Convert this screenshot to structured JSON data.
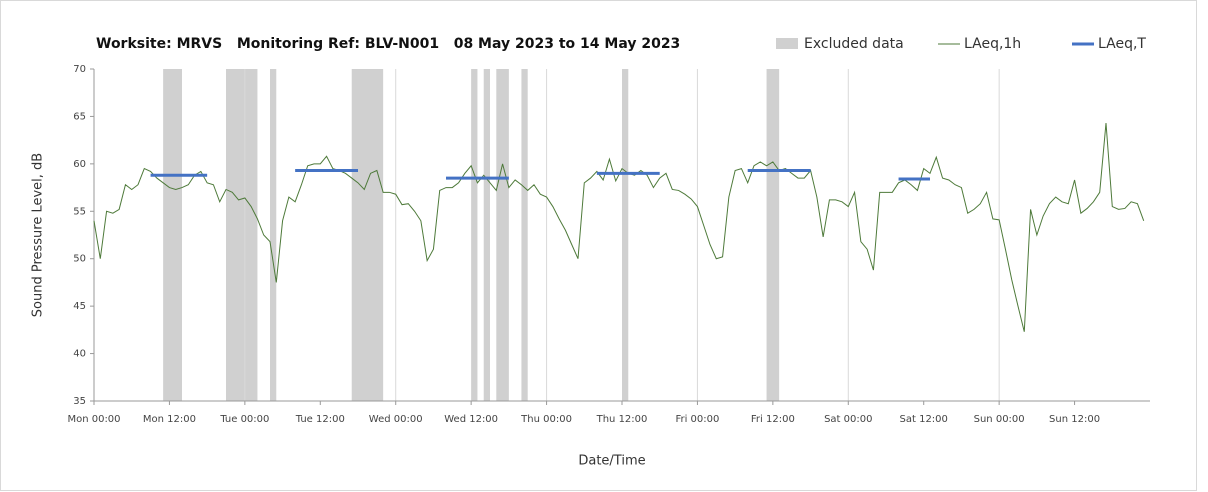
{
  "chart_data": {
    "type": "line",
    "title": "Worksite: MRVS   Monitoring Ref: BLV-N001   08 May 2023 to 14 May 2023",
    "xlabel": "Date/Time",
    "ylabel": "Sound Pressure Level, dB",
    "xlim": [
      0,
      168
    ],
    "ylim": [
      35,
      70
    ],
    "xticks": [
      {
        "value": 0,
        "label": "Mon 00:00"
      },
      {
        "value": 12,
        "label": "Mon 12:00"
      },
      {
        "value": 24,
        "label": "Tue 00:00"
      },
      {
        "value": 36,
        "label": "Tue 12:00"
      },
      {
        "value": 48,
        "label": "Wed 00:00"
      },
      {
        "value": 60,
        "label": "Wed 12:00"
      },
      {
        "value": 72,
        "label": "Thu 00:00"
      },
      {
        "value": 84,
        "label": "Thu 12:00"
      },
      {
        "value": 96,
        "label": "Fri 00:00"
      },
      {
        "value": 108,
        "label": "Fri 12:00"
      },
      {
        "value": 120,
        "label": "Sat 00:00"
      },
      {
        "value": 132,
        "label": "Sat 12:00"
      },
      {
        "value": 144,
        "label": "Sun 00:00"
      },
      {
        "value": 156,
        "label": "Sun 12:00"
      }
    ],
    "yticks": [
      35,
      40,
      45,
      50,
      55,
      60,
      65,
      70
    ],
    "grid": "x",
    "legend": "top-right",
    "excluded": {
      "name": "Excluded data",
      "color": "#d0d0d0",
      "ranges": [
        [
          11,
          14
        ],
        [
          21,
          26
        ],
        [
          28,
          29
        ],
        [
          41,
          46
        ],
        [
          60,
          61
        ],
        [
          62,
          63
        ],
        [
          64,
          66
        ],
        [
          68,
          69
        ],
        [
          84,
          85
        ],
        [
          107,
          109
        ]
      ]
    },
    "series": [
      {
        "name": "LAeq,1h",
        "color": "#4e7a3a",
        "x": [
          0,
          1,
          2,
          3,
          4,
          5,
          6,
          7,
          8,
          9,
          10,
          11,
          12,
          13,
          14,
          15,
          16,
          17,
          18,
          19,
          20,
          21,
          22,
          23,
          24,
          25,
          26,
          27,
          28,
          29,
          30,
          31,
          32,
          33,
          34,
          35,
          36,
          37,
          38,
          39,
          40,
          41,
          42,
          43,
          44,
          45,
          46,
          47,
          48,
          49,
          50,
          51,
          52,
          53,
          54,
          55,
          56,
          57,
          58,
          59,
          60,
          61,
          62,
          63,
          64,
          65,
          66,
          67,
          68,
          69,
          70,
          71,
          72,
          73,
          74,
          75,
          76,
          77,
          78,
          79,
          80,
          81,
          82,
          83,
          84,
          85,
          86,
          87,
          88,
          89,
          90,
          91,
          92,
          93,
          94,
          95,
          96,
          97,
          98,
          99,
          100,
          101,
          102,
          103,
          104,
          105,
          106,
          107,
          108,
          109,
          110,
          111,
          112,
          113,
          114,
          115,
          116,
          117,
          118,
          119,
          120,
          121,
          122,
          123,
          124,
          125,
          126,
          127,
          128,
          129,
          130,
          131,
          132,
          133,
          134,
          135,
          136,
          137,
          138,
          139,
          140,
          141,
          142,
          143,
          144,
          145,
          146,
          147,
          148,
          149,
          150,
          151,
          152,
          153,
          154,
          155,
          156,
          157,
          158,
          159,
          160,
          161,
          162,
          163,
          164,
          165,
          166,
          167
        ],
        "values": [
          54,
          50,
          55,
          54.8,
          55.2,
          57.8,
          57.3,
          57.8,
          59.5,
          59.2,
          58.5,
          58,
          57.5,
          57.3,
          57.5,
          57.8,
          58.8,
          59.2,
          58,
          57.8,
          56,
          57.3,
          57,
          56.2,
          56.4,
          55.5,
          54.2,
          52.5,
          51.8,
          47.5,
          54,
          56.5,
          56,
          57.8,
          59.8,
          60,
          60,
          60.8,
          59.5,
          59.3,
          59,
          58.5,
          58,
          57.3,
          59,
          59.3,
          57,
          57,
          56.8,
          55.7,
          55.8,
          55,
          54,
          49.8,
          51,
          57.2,
          57.5,
          57.5,
          58,
          59,
          59.8,
          58,
          58.8,
          58,
          57.2,
          60,
          57.5,
          58.3,
          57.8,
          57.2,
          57.8,
          56.8,
          56.5,
          55.5,
          54.2,
          53,
          51.5,
          50,
          58,
          58.5,
          59.2,
          58.3,
          60.5,
          58.2,
          59.5,
          59,
          58.8,
          59.3,
          58.8,
          57.5,
          58.5,
          59,
          57.3,
          57.2,
          56.8,
          56.3,
          55.5,
          53.5,
          51.5,
          50,
          50.2,
          56.5,
          59.3,
          59.5,
          58,
          59.8,
          60.2,
          59.8,
          60.2,
          59.3,
          59.5,
          59,
          58.5,
          58.5,
          59.3,
          56.5,
          52.3,
          56.2,
          56.2,
          56,
          55.5,
          57,
          51.8,
          51,
          48.8,
          57,
          57,
          57,
          58,
          58.3,
          57.8,
          57.2,
          59.5,
          59,
          60.7,
          58.5,
          58.3,
          57.8,
          57.5,
          54.8,
          55.2,
          55.8,
          57,
          54.2,
          54.1,
          51,
          47.8,
          45,
          42.3,
          55.2,
          52.5,
          54.5,
          55.8,
          56.5,
          56,
          55.8,
          58.3,
          54.8,
          55.3,
          56,
          57,
          64.3,
          55.5,
          55.2,
          55.3,
          56,
          55.8,
          54
        ]
      },
      {
        "name": "LAeq,T",
        "color": "#4472c4",
        "segments": [
          {
            "x": [
              9,
              18
            ],
            "value": 58.8
          },
          {
            "x": [
              32,
              42
            ],
            "value": 59.3
          },
          {
            "x": [
              56,
              66
            ],
            "value": 58.5
          },
          {
            "x": [
              80,
              90
            ],
            "value": 59
          },
          {
            "x": [
              104,
              114
            ],
            "value": 59.3
          },
          {
            "x": [
              128,
              133
            ],
            "value": 58.4
          }
        ]
      }
    ]
  }
}
